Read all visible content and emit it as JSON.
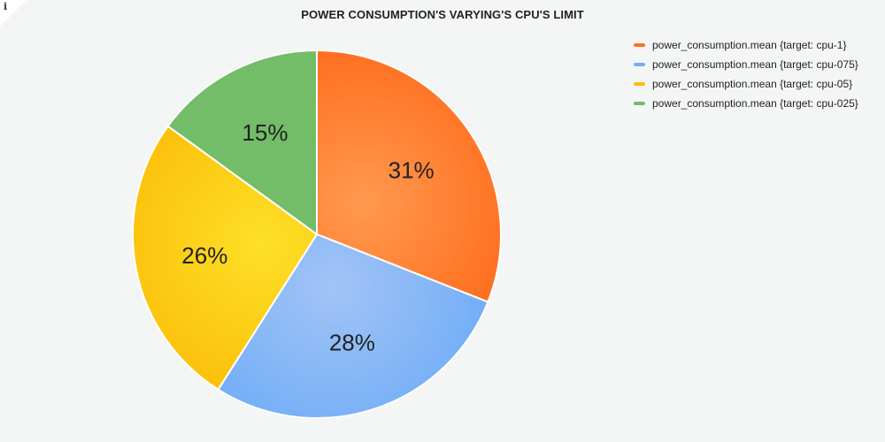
{
  "info_icon": "info-icon",
  "chart_data": {
    "type": "pie",
    "title": "POWER CONSUMPTION'S VARYING'S CPU'S LIMIT",
    "legend_position": "top-right",
    "slices": [
      {
        "name": "power_consumption.mean {target: cpu-1}",
        "percent": 31,
        "label": "31%",
        "color": "#ff6f20",
        "color_light": "#ff9a4f"
      },
      {
        "name": "power_consumption.mean {target: cpu-075}",
        "percent": 28,
        "label": "28%",
        "color": "#73aef7",
        "color_light": "#a2c4f6"
      },
      {
        "name": "power_consumption.mean {target: cpu-05}",
        "percent": 26,
        "label": "26%",
        "color": "#fcbf0a",
        "color_light": "#fde027"
      },
      {
        "name": "power_consumption.mean {target: cpu-025}",
        "percent": 15,
        "label": "15%",
        "color": "#73bd68",
        "color_light": "#73bd68"
      }
    ]
  }
}
